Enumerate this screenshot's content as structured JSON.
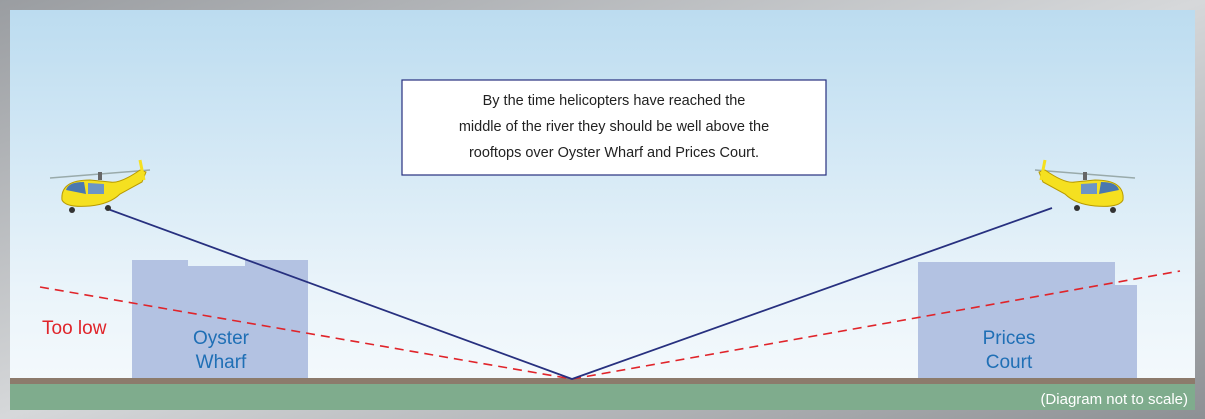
{
  "caption": {
    "lines": [
      "By the time helicopters have reached the",
      "middle of the river they should be well above the",
      "rooftops over Oyster Wharf and Prices Court."
    ]
  },
  "labels": {
    "too_low": "Too low",
    "oyster_wharf": [
      "Oyster",
      "Wharf"
    ],
    "prices_court": [
      "Prices",
      "Court"
    ]
  },
  "footnote": "(Diagram not to scale)"
}
